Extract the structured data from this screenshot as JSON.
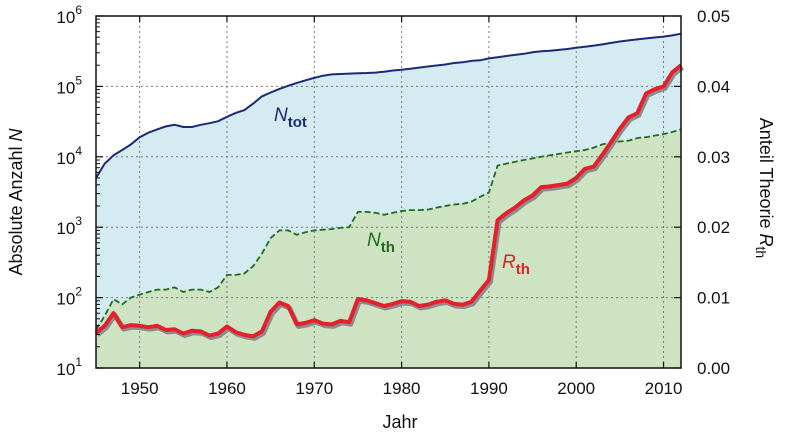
{
  "chart_data": {
    "type": "area",
    "xlabel": "Jahr",
    "ylabel_left": "Absolute Anzahl",
    "ylabel_left_var": "N",
    "ylabel_right": "Anteil Theorie",
    "ylabel_right_var": "R",
    "ylabel_right_sub": "th",
    "xlim": [
      1945,
      2012
    ],
    "ylim_left": [
      10,
      1000000
    ],
    "ylim_left_scale": "log",
    "ylim_right": [
      0.0,
      0.05
    ],
    "grid": true,
    "x_ticks": [
      1950,
      1960,
      1970,
      1980,
      1990,
      2000,
      2010
    ],
    "y_left_ticks": [
      {
        "base": "10",
        "exp": "1"
      },
      {
        "base": "10",
        "exp": "2"
      },
      {
        "base": "10",
        "exp": "3"
      },
      {
        "base": "10",
        "exp": "4"
      },
      {
        "base": "10",
        "exp": "5"
      },
      {
        "base": "10",
        "exp": "6"
      }
    ],
    "y_right_ticks": [
      "0.00",
      "0.01",
      "0.02",
      "0.03",
      "0.04",
      "0.05"
    ],
    "series": [
      {
        "id": "ntot",
        "label_main": "N",
        "label_sub": "tot",
        "color": "#1c2a78",
        "fill": "#d3ebf1",
        "axis": "left",
        "x": [
          1945,
          1946,
          1947,
          1948,
          1949,
          1950,
          1951,
          1952,
          1953,
          1954,
          1955,
          1956,
          1957,
          1958,
          1959,
          1960,
          1961,
          1962,
          1963,
          1964,
          1965,
          1966,
          1967,
          1968,
          1969,
          1970,
          1971,
          1972,
          1973,
          1974,
          1975,
          1976,
          1977,
          1978,
          1979,
          1980,
          1981,
          1982,
          1983,
          1984,
          1985,
          1986,
          1987,
          1988,
          1989,
          1990,
          1991,
          1992,
          1993,
          1994,
          1995,
          1996,
          1997,
          1998,
          1999,
          2000,
          2001,
          2002,
          2003,
          2004,
          2005,
          2006,
          2007,
          2008,
          2009,
          2010,
          2011,
          2012
        ],
        "y": [
          5000,
          8000,
          10500,
          12500,
          15000,
          19000,
          22000,
          24500,
          27000,
          28500,
          26500,
          26500,
          28500,
          30000,
          32000,
          37000,
          42000,
          46000,
          57000,
          72000,
          82000,
          92000,
          102000,
          112000,
          122000,
          132000,
          142000,
          148000,
          150000,
          152000,
          154000,
          155000,
          157000,
          162000,
          168000,
          172000,
          178000,
          185000,
          192000,
          198000,
          205000,
          215000,
          220000,
          230000,
          235000,
          250000,
          260000,
          270000,
          280000,
          290000,
          305000,
          315000,
          320000,
          330000,
          340000,
          355000,
          365000,
          380000,
          395000,
          415000,
          435000,
          450000,
          465000,
          480000,
          495000,
          510000,
          530000,
          560000
        ]
      },
      {
        "id": "nth",
        "label_main": "N",
        "label_sub": "th",
        "color": "#1f6b1f",
        "fill": "#cde3c2",
        "axis": "left",
        "dashed": true,
        "x": [
          1945,
          1946,
          1947,
          1948,
          1949,
          1950,
          1951,
          1952,
          1953,
          1954,
          1955,
          1956,
          1957,
          1958,
          1959,
          1960,
          1961,
          1962,
          1963,
          1964,
          1965,
          1966,
          1967,
          1968,
          1969,
          1970,
          1971,
          1972,
          1973,
          1974,
          1975,
          1976,
          1977,
          1978,
          1979,
          1980,
          1981,
          1982,
          1983,
          1984,
          1985,
          1986,
          1987,
          1988,
          1989,
          1990,
          1991,
          1992,
          1993,
          1994,
          1995,
          1996,
          1997,
          1998,
          1999,
          2000,
          2001,
          2002,
          2003,
          2004,
          2005,
          2006,
          2007,
          2008,
          2009,
          2010,
          2011,
          2012
        ],
        "y": [
          35,
          55,
          95,
          80,
          100,
          110,
          120,
          130,
          130,
          140,
          120,
          130,
          130,
          120,
          140,
          210,
          210,
          220,
          280,
          420,
          700,
          900,
          900,
          780,
          850,
          900,
          920,
          940,
          980,
          1000,
          1650,
          1650,
          1600,
          1500,
          1600,
          1700,
          1750,
          1750,
          1780,
          1900,
          2000,
          2100,
          2150,
          2300,
          2700,
          3100,
          7500,
          8000,
          8500,
          9000,
          9500,
          10000,
          10500,
          11000,
          11500,
          12000,
          12500,
          13500,
          15000,
          16000,
          16500,
          17000,
          18500,
          19000,
          20000,
          21000,
          22500,
          24500
        ]
      },
      {
        "id": "rth",
        "label_main": "R",
        "label_sub": "th",
        "color": "#e3202c",
        "axis": "right",
        "x": [
          1945,
          1946,
          1947,
          1948,
          1949,
          1950,
          1951,
          1952,
          1953,
          1954,
          1955,
          1956,
          1957,
          1958,
          1959,
          1960,
          1961,
          1962,
          1963,
          1964,
          1965,
          1966,
          1967,
          1968,
          1969,
          1970,
          1971,
          1972,
          1973,
          1974,
          1975,
          1976,
          1977,
          1978,
          1979,
          1980,
          1981,
          1982,
          1983,
          1984,
          1985,
          1986,
          1987,
          1988,
          1989,
          1990,
          1991,
          1992,
          1993,
          1994,
          1995,
          1996,
          1997,
          1998,
          1999,
          2000,
          2001,
          2002,
          2003,
          2004,
          2005,
          2006,
          2007,
          2008,
          2009,
          2010,
          2011,
          2012
        ],
        "y": [
          0.005,
          0.006,
          0.0078,
          0.0058,
          0.0061,
          0.006,
          0.0058,
          0.006,
          0.0054,
          0.0055,
          0.0049,
          0.0053,
          0.0052,
          0.0046,
          0.0049,
          0.0059,
          0.0051,
          0.0047,
          0.0045,
          0.0052,
          0.008,
          0.0093,
          0.0088,
          0.0062,
          0.0064,
          0.0068,
          0.0063,
          0.0062,
          0.0067,
          0.0065,
          0.0098,
          0.0096,
          0.0092,
          0.0088,
          0.0091,
          0.0095,
          0.0094,
          0.0088,
          0.009,
          0.0094,
          0.0096,
          0.0091,
          0.009,
          0.0094,
          0.011,
          0.0125,
          0.021,
          0.022,
          0.0228,
          0.0238,
          0.0245,
          0.0257,
          0.0258,
          0.026,
          0.0262,
          0.027,
          0.0283,
          0.0286,
          0.0303,
          0.0321,
          0.034,
          0.0356,
          0.0362,
          0.039,
          0.0396,
          0.04,
          0.042,
          0.043
        ]
      }
    ]
  }
}
